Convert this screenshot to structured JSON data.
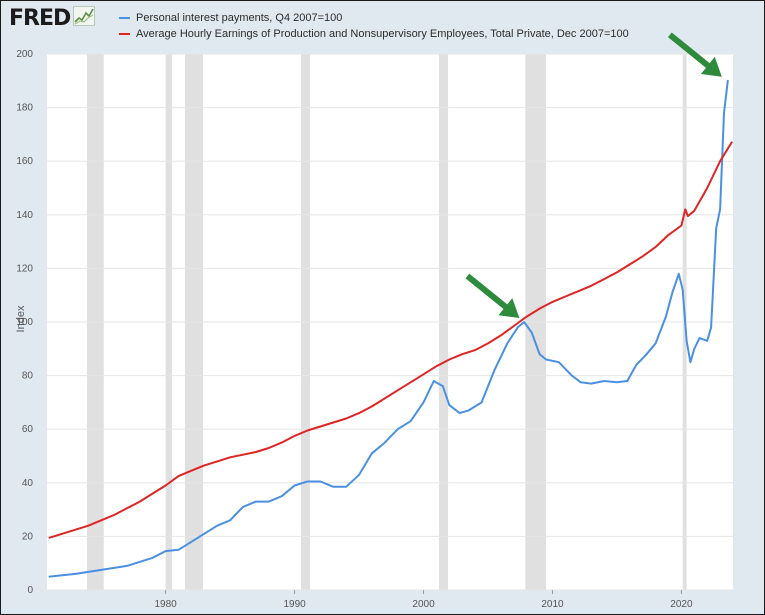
{
  "header": {
    "logo_text": "FRED",
    "logo_icon": "chart-line-icon"
  },
  "colors": {
    "background": "#e1e9f0",
    "plot_area": "#ffffff",
    "recession": "#e0e0e0",
    "series_blue": "#4a90e2",
    "series_red": "#e02424",
    "arrow": "#2e8b3c"
  },
  "chart_data": {
    "type": "line",
    "title": "",
    "xlabel": "",
    "ylabel": "Index",
    "xlim": [
      1970.8,
      2024.0
    ],
    "ylim": [
      0,
      200
    ],
    "yticks": [
      0,
      20,
      40,
      60,
      80,
      100,
      120,
      140,
      160,
      180,
      200
    ],
    "xticks": [
      1980,
      1990,
      2000,
      2010,
      2020
    ],
    "grid": true,
    "legend_position": "top-left",
    "recessions": [
      [
        1973.9,
        1975.2
      ],
      [
        1980.0,
        1980.5
      ],
      [
        1981.5,
        1982.9
      ],
      [
        1990.5,
        1991.2
      ],
      [
        2001.2,
        2001.9
      ],
      [
        2007.9,
        2009.5
      ],
      [
        2020.1,
        2020.4
      ]
    ],
    "series": [
      {
        "name": "Personal interest payments, Q4 2007=100",
        "color": "#4a90e2",
        "points": [
          [
            1971,
            5
          ],
          [
            1973,
            6
          ],
          [
            1975,
            7.5
          ],
          [
            1977,
            9
          ],
          [
            1979,
            12
          ],
          [
            1980,
            14.5
          ],
          [
            1981,
            15
          ],
          [
            1982,
            18
          ],
          [
            1983,
            21
          ],
          [
            1984,
            24
          ],
          [
            1985,
            26
          ],
          [
            1986,
            31
          ],
          [
            1987,
            33
          ],
          [
            1988,
            33
          ],
          [
            1989,
            35
          ],
          [
            1990,
            39
          ],
          [
            1991,
            40.5
          ],
          [
            1992,
            40.5
          ],
          [
            1993,
            38.5
          ],
          [
            1994,
            38.5
          ],
          [
            1995,
            43
          ],
          [
            1996,
            51
          ],
          [
            1997,
            55
          ],
          [
            1998,
            60
          ],
          [
            1999,
            63
          ],
          [
            2000,
            70
          ],
          [
            2000.8,
            78
          ],
          [
            2001.5,
            76
          ],
          [
            2002,
            69
          ],
          [
            2002.8,
            66
          ],
          [
            2003.5,
            67
          ],
          [
            2004.5,
            70
          ],
          [
            2005.5,
            82
          ],
          [
            2006.5,
            92
          ],
          [
            2007.3,
            98
          ],
          [
            2007.8,
            100
          ],
          [
            2008.4,
            96
          ],
          [
            2009,
            88
          ],
          [
            2009.5,
            86
          ],
          [
            2010.5,
            85
          ],
          [
            2011.5,
            80
          ],
          [
            2012.2,
            77.5
          ],
          [
            2013,
            77
          ],
          [
            2014,
            78
          ],
          [
            2015,
            77.5
          ],
          [
            2015.8,
            78
          ],
          [
            2016.5,
            84
          ],
          [
            2017.3,
            88
          ],
          [
            2018,
            92
          ],
          [
            2018.8,
            102
          ],
          [
            2019.3,
            111
          ],
          [
            2019.8,
            118
          ],
          [
            2020.1,
            112
          ],
          [
            2020.4,
            93
          ],
          [
            2020.7,
            85
          ],
          [
            2021,
            90
          ],
          [
            2021.4,
            94
          ],
          [
            2022,
            93
          ],
          [
            2022.3,
            98
          ],
          [
            2022.7,
            135
          ],
          [
            2023,
            142
          ],
          [
            2023.3,
            178
          ],
          [
            2023.6,
            190
          ]
        ]
      },
      {
        "name": "Average Hourly Earnings of Production and Nonsupervisory Employees, Total Private, Dec 2007=100",
        "color": "#e02424",
        "points": [
          [
            1971,
            19.5
          ],
          [
            1972,
            21
          ],
          [
            1973,
            22.5
          ],
          [
            1974,
            24
          ],
          [
            1975,
            26
          ],
          [
            1976,
            28
          ],
          [
            1977,
            30.5
          ],
          [
            1978,
            33
          ],
          [
            1979,
            36
          ],
          [
            1980,
            39
          ],
          [
            1981,
            42.5
          ],
          [
            1982,
            44.5
          ],
          [
            1983,
            46.5
          ],
          [
            1984,
            48
          ],
          [
            1985,
            49.5
          ],
          [
            1986,
            50.5
          ],
          [
            1987,
            51.5
          ],
          [
            1988,
            53
          ],
          [
            1989,
            55
          ],
          [
            1990,
            57.5
          ],
          [
            1991,
            59.5
          ],
          [
            1992,
            61
          ],
          [
            1993,
            62.5
          ],
          [
            1994,
            64
          ],
          [
            1995,
            66
          ],
          [
            1996,
            68.5
          ],
          [
            1997,
            71.5
          ],
          [
            1998,
            74.5
          ],
          [
            1999,
            77.5
          ],
          [
            2000,
            80.5
          ],
          [
            2001,
            83.5
          ],
          [
            2002,
            86
          ],
          [
            2003,
            88
          ],
          [
            2004,
            89.5
          ],
          [
            2005,
            92
          ],
          [
            2006,
            95
          ],
          [
            2007,
            98.5
          ],
          [
            2008,
            102
          ],
          [
            2009,
            105
          ],
          [
            2010,
            107.5
          ],
          [
            2011,
            109.5
          ],
          [
            2012,
            111.5
          ],
          [
            2013,
            113.5
          ],
          [
            2014,
            116
          ],
          [
            2015,
            118.5
          ],
          [
            2016,
            121.5
          ],
          [
            2017,
            124.5
          ],
          [
            2018,
            128
          ],
          [
            2019,
            132.5
          ],
          [
            2020,
            136
          ],
          [
            2020.3,
            142
          ],
          [
            2020.5,
            139.5
          ],
          [
            2021,
            141.5
          ],
          [
            2022,
            150
          ],
          [
            2023,
            160
          ],
          [
            2023.9,
            167
          ]
        ]
      }
    ],
    "annotations": [
      {
        "type": "arrow",
        "target_x": 2007.9,
        "target_y": 100
      },
      {
        "type": "arrow",
        "target_x": 2023.6,
        "target_y": 190
      }
    ]
  }
}
